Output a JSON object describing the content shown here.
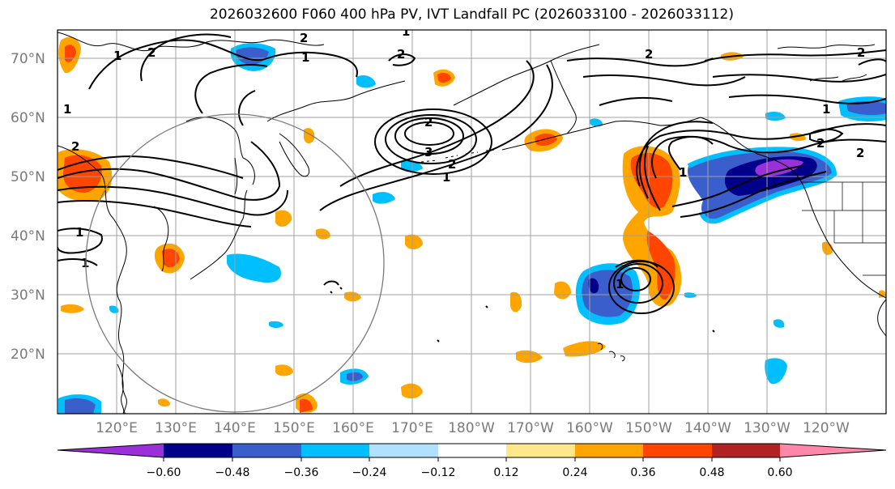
{
  "title": "2026032600 F060 400 hPa PV, IVT Landfall PC (2026033100 - 2026033112)",
  "map": {
    "lat_labels": [
      "70°N",
      "60°N",
      "50°N",
      "40°N",
      "30°N",
      "20°N"
    ],
    "lon_labels": [
      "120°E",
      "130°E",
      "140°E",
      "150°E",
      "160°E",
      "170°E",
      "180°W",
      "170°W",
      "160°W",
      "150°W",
      "140°W",
      "130°W",
      "120°W"
    ],
    "contour_labels": [
      "1",
      "2",
      "1",
      "2",
      "2",
      "2",
      "2",
      "2",
      "1",
      "2",
      "2",
      "3",
      "2",
      "1",
      "1",
      "2",
      "1",
      "1",
      "1",
      "1",
      "1"
    ]
  },
  "colorbar": {
    "colors": [
      "#9b30d9",
      "#00008b",
      "#3a5fcd",
      "#00bfff",
      "#b0e2ff",
      "#ffffff",
      "#ffe88a",
      "#ffa500",
      "#ff4500",
      "#b22222",
      "#ff88aa"
    ],
    "tick_labels": [
      "−0.60",
      "−0.48",
      "−0.36",
      "−0.24",
      "−0.12",
      "0.12",
      "0.24",
      "0.36",
      "0.48",
      "0.60"
    ]
  },
  "colors": {
    "grid": "#a0a0a0",
    "coast": "#000000",
    "contour": "#000000"
  }
}
